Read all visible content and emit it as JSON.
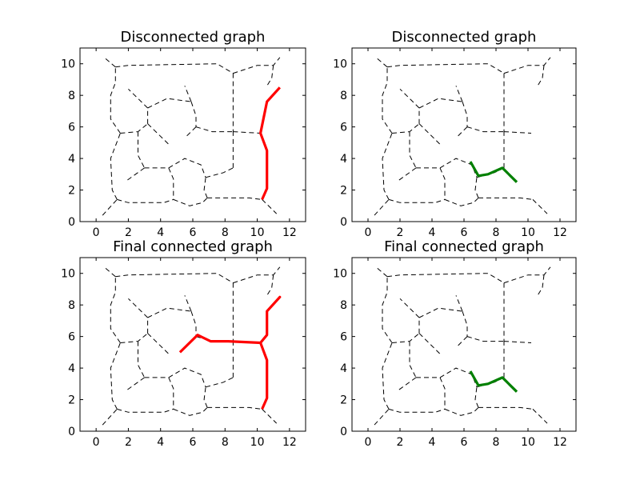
{
  "chart_data": [
    {
      "type": "line",
      "title": "Disconnected graph",
      "xlim": [
        -1,
        13
      ],
      "ylim": [
        0,
        11
      ],
      "xticks": [
        "0",
        "2",
        "4",
        "6",
        "8",
        "10",
        "12"
      ],
      "yticks": [
        "0",
        "2",
        "4",
        "6",
        "8",
        "10"
      ],
      "grid": false,
      "highlight_color": "#ff0000",
      "highlight_path": [
        [
          11.4,
          8.5
        ],
        [
          10.6,
          7.6
        ],
        [
          10.6,
          7.6
        ],
        [
          10.2,
          5.6
        ],
        [
          10.6,
          4.5
        ],
        [
          10.6,
          2.1
        ],
        [
          10.3,
          1.4
        ]
      ]
    },
    {
      "type": "line",
      "title": "Disconnected graph",
      "xlim": [
        -1,
        13
      ],
      "ylim": [
        0,
        11
      ],
      "xticks": [
        "0",
        "2",
        "4",
        "6",
        "8",
        "10",
        "12"
      ],
      "yticks": [
        "0",
        "2",
        "4",
        "6",
        "8",
        "10"
      ],
      "grid": false,
      "highlight_color": "#008000",
      "highlight_path": [
        [
          6.4,
          3.8
        ],
        [
          6.9,
          2.9
        ],
        [
          7.5,
          3.0
        ],
        [
          8.4,
          3.4
        ],
        [
          9.3,
          2.5
        ]
      ]
    },
    {
      "type": "line",
      "title": "Final connected graph",
      "xlim": [
        -1,
        13
      ],
      "ylim": [
        0,
        11
      ],
      "xticks": [
        "0",
        "2",
        "4",
        "6",
        "8",
        "10",
        "12"
      ],
      "yticks": [
        "0",
        "2",
        "4",
        "6",
        "8",
        "10"
      ],
      "grid": false,
      "highlight_color": "#ff0000",
      "highlight_path": [
        [
          5.2,
          5.0
        ],
        [
          6.3,
          6.1
        ],
        [
          7.1,
          5.7
        ],
        [
          8.2,
          5.7
        ],
        [
          10.2,
          5.6
        ],
        [
          10.6,
          6.1
        ],
        [
          10.6,
          7.6
        ],
        [
          11.4,
          8.5
        ],
        [
          10.6,
          7.6
        ],
        [
          10.6,
          6.1
        ],
        [
          10.2,
          5.6
        ],
        [
          10.6,
          4.5
        ],
        [
          10.6,
          2.1
        ],
        [
          10.3,
          1.4
        ]
      ]
    },
    {
      "type": "line",
      "title": "Final connected graph",
      "xlim": [
        -1,
        13
      ],
      "ylim": [
        0,
        11
      ],
      "xticks": [
        "0",
        "2",
        "4",
        "6",
        "8",
        "10",
        "12"
      ],
      "yticks": [
        "0",
        "2",
        "4",
        "6",
        "8",
        "10"
      ],
      "grid": false,
      "highlight_color": "#008000",
      "highlight_path": [
        [
          6.4,
          3.8
        ],
        [
          6.9,
          2.9
        ],
        [
          7.5,
          3.0
        ],
        [
          8.4,
          3.4
        ],
        [
          9.3,
          2.5
        ]
      ]
    }
  ],
  "graph_edges": [
    [
      [
        0.4,
        0.4
      ],
      [
        1.3,
        1.4
      ]
    ],
    [
      [
        1.3,
        1.4
      ],
      [
        1.0,
        2.0
      ],
      [
        0.9,
        4.0
      ],
      [
        1.5,
        5.6
      ]
    ],
    [
      [
        1.3,
        1.4
      ],
      [
        2.0,
        1.2
      ],
      [
        4.2,
        1.2
      ],
      [
        4.8,
        1.4
      ]
    ],
    [
      [
        1.5,
        5.6
      ],
      [
        0.9,
        6.5
      ],
      [
        0.9,
        8.0
      ],
      [
        1.2,
        8.8
      ],
      [
        1.2,
        9.8
      ]
    ],
    [
      [
        1.2,
        9.8
      ],
      [
        0.5,
        10.4
      ]
    ],
    [
      [
        1.2,
        9.8
      ],
      [
        2.0,
        9.9
      ],
      [
        7.5,
        10.0
      ],
      [
        8.5,
        9.4
      ]
    ],
    [
      [
        8.5,
        9.4
      ],
      [
        10.0,
        9.9
      ],
      [
        11.0,
        9.9
      ],
      [
        11.4,
        10.4
      ]
    ],
    [
      [
        11.0,
        9.9
      ],
      [
        10.9,
        9.1
      ],
      [
        10.6,
        8.6
      ]
    ],
    [
      [
        8.5,
        9.4
      ],
      [
        8.5,
        5.7
      ]
    ],
    [
      [
        1.5,
        5.6
      ],
      [
        2.6,
        5.7
      ],
      [
        3.2,
        6.2
      ]
    ],
    [
      [
        3.2,
        6.2
      ],
      [
        4.5,
        4.9
      ]
    ],
    [
      [
        3.2,
        6.2
      ],
      [
        3.2,
        7.2
      ]
    ],
    [
      [
        3.2,
        7.2
      ],
      [
        2.0,
        8.4
      ]
    ],
    [
      [
        3.2,
        7.2
      ],
      [
        4.4,
        7.8
      ],
      [
        5.9,
        7.6
      ]
    ],
    [
      [
        5.9,
        7.6
      ],
      [
        5.5,
        8.6
      ]
    ],
    [
      [
        5.9,
        7.6
      ],
      [
        6.2,
        6.7
      ],
      [
        6.2,
        6.0
      ]
    ],
    [
      [
        6.2,
        6.0
      ],
      [
        7.2,
        5.7
      ],
      [
        8.5,
        5.7
      ]
    ],
    [
      [
        6.2,
        6.0
      ],
      [
        5.6,
        5.4
      ]
    ],
    [
      [
        8.5,
        5.7
      ],
      [
        10.2,
        5.6
      ]
    ],
    [
      [
        2.6,
        5.7
      ],
      [
        2.6,
        4.2
      ],
      [
        3.0,
        3.4
      ]
    ],
    [
      [
        3.0,
        3.4
      ],
      [
        1.9,
        2.6
      ]
    ],
    [
      [
        3.0,
        3.4
      ],
      [
        4.5,
        3.4
      ]
    ],
    [
      [
        4.5,
        3.4
      ],
      [
        5.5,
        4.0
      ],
      [
        6.5,
        3.6
      ],
      [
        6.8,
        2.8
      ]
    ],
    [
      [
        4.5,
        3.4
      ],
      [
        4.8,
        2.7
      ],
      [
        4.8,
        1.4
      ]
    ],
    [
      [
        4.8,
        1.4
      ],
      [
        5.8,
        1.0
      ],
      [
        6.6,
        1.2
      ],
      [
        6.9,
        1.5
      ]
    ],
    [
      [
        6.9,
        1.5
      ],
      [
        6.7,
        2.0
      ],
      [
        6.8,
        2.8
      ]
    ],
    [
      [
        6.8,
        2.8
      ],
      [
        7.9,
        3.1
      ],
      [
        8.5,
        3.4
      ]
    ],
    [
      [
        8.5,
        3.4
      ],
      [
        8.5,
        5.7
      ]
    ],
    [
      [
        6.9,
        1.5
      ],
      [
        7.5,
        1.5
      ],
      [
        9.5,
        1.5
      ],
      [
        10.3,
        1.4
      ]
    ],
    [
      [
        10.3,
        1.4
      ],
      [
        11.2,
        0.5
      ]
    ]
  ]
}
